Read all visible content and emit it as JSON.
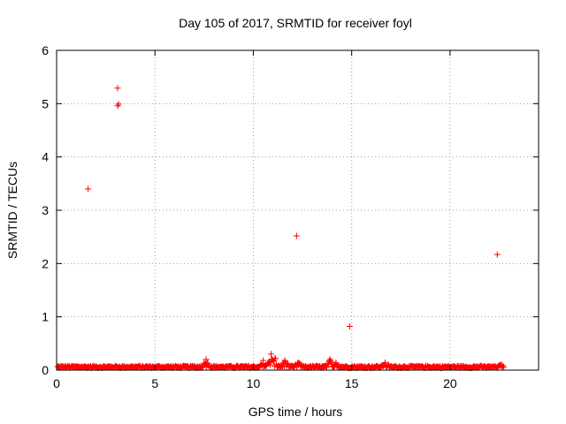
{
  "chart_data": {
    "type": "scatter",
    "title": "Day 105 of 2017, SRMTID for receiver foyl",
    "xlabel": "GPS time / hours",
    "ylabel": "SRMTID / TECUs",
    "xlim": [
      0,
      24.5
    ],
    "ylim": [
      0,
      6
    ],
    "xticks": [
      "0",
      "5",
      "10",
      "15",
      "20"
    ],
    "yticks": [
      "0",
      "1",
      "2",
      "3",
      "4",
      "5",
      "6"
    ],
    "grid": true,
    "marker": "+",
    "marker_color": "#ff0000",
    "outliers": {
      "x": [
        1.6,
        3.1,
        3.15,
        3.1,
        12.2,
        14.9,
        22.4
      ],
      "y": [
        3.4,
        5.29,
        4.99,
        4.96,
        2.52,
        0.82,
        2.17
      ]
    },
    "baseline_range_hours": [
      0.05,
      22.75
    ],
    "baseline_typical_value": 0.06,
    "bumps": [
      {
        "x": 7.6,
        "y": 0.2
      },
      {
        "x": 10.5,
        "y": 0.18
      },
      {
        "x": 10.9,
        "y": 0.3
      },
      {
        "x": 11.1,
        "y": 0.22
      },
      {
        "x": 11.6,
        "y": 0.18
      },
      {
        "x": 12.3,
        "y": 0.14
      },
      {
        "x": 13.9,
        "y": 0.2
      },
      {
        "x": 14.2,
        "y": 0.14
      },
      {
        "x": 16.7,
        "y": 0.14
      },
      {
        "x": 22.6,
        "y": 0.1
      }
    ]
  }
}
